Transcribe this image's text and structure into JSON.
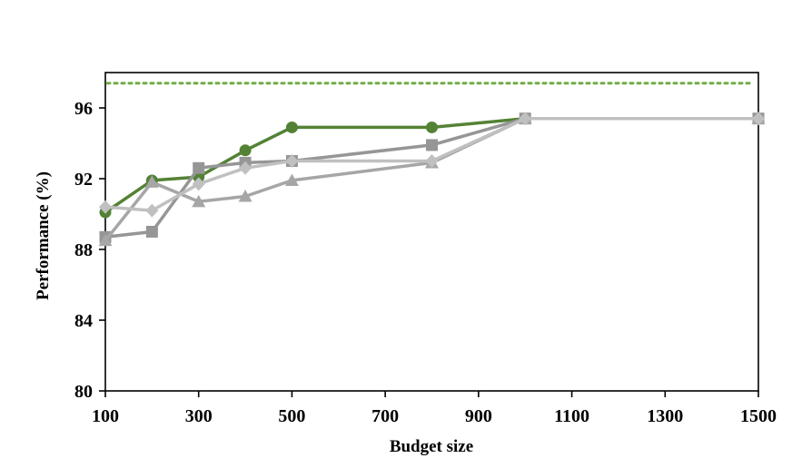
{
  "chart_data": {
    "type": "line",
    "title": "",
    "xlabel": "Budget size",
    "ylabel": "Performance (%)",
    "xlim": [
      100,
      1500
    ],
    "ylim": [
      80,
      98
    ],
    "xticks": [
      100,
      300,
      500,
      700,
      900,
      1100,
      1300,
      1500
    ],
    "xtick_labels": [
      "100",
      "300",
      "500",
      "700",
      "900",
      "1100",
      "1300",
      "1500"
    ],
    "yticks": [
      80,
      84,
      88,
      92,
      96
    ],
    "ytick_labels": [
      "80",
      "84",
      "88",
      "92",
      "96"
    ],
    "grid": false,
    "legend": "none",
    "reference_line": {
      "y": 97.4,
      "color": "#70ad47",
      "style": "dotted"
    },
    "series": [
      {
        "color": "#548235",
        "marker": "circle",
        "x": [
          100,
          200,
          300,
          400,
          500,
          800,
          1000,
          1500
        ],
        "y": [
          90.1,
          91.9,
          92.1,
          93.6,
          94.9,
          94.9,
          95.4,
          95.4
        ]
      },
      {
        "color": "#969696",
        "marker": "square",
        "x": [
          100,
          200,
          300,
          400,
          500,
          800,
          1000,
          1500
        ],
        "y": [
          88.7,
          89.0,
          92.6,
          92.9,
          93.0,
          93.9,
          95.4,
          95.4
        ]
      },
      {
        "color": "#a6a6a6",
        "marker": "triangle",
        "x": [
          100,
          200,
          300,
          400,
          500,
          800,
          1000,
          1500
        ],
        "y": [
          88.5,
          91.8,
          90.7,
          91.0,
          91.9,
          92.9,
          95.4,
          95.4
        ]
      },
      {
        "color": "#c0c0c0",
        "marker": "diamond",
        "x": [
          100,
          200,
          300,
          400,
          500,
          800,
          1000,
          1500
        ],
        "y": [
          90.4,
          90.2,
          91.7,
          92.6,
          93.0,
          93.0,
          95.4,
          95.4
        ]
      }
    ]
  }
}
